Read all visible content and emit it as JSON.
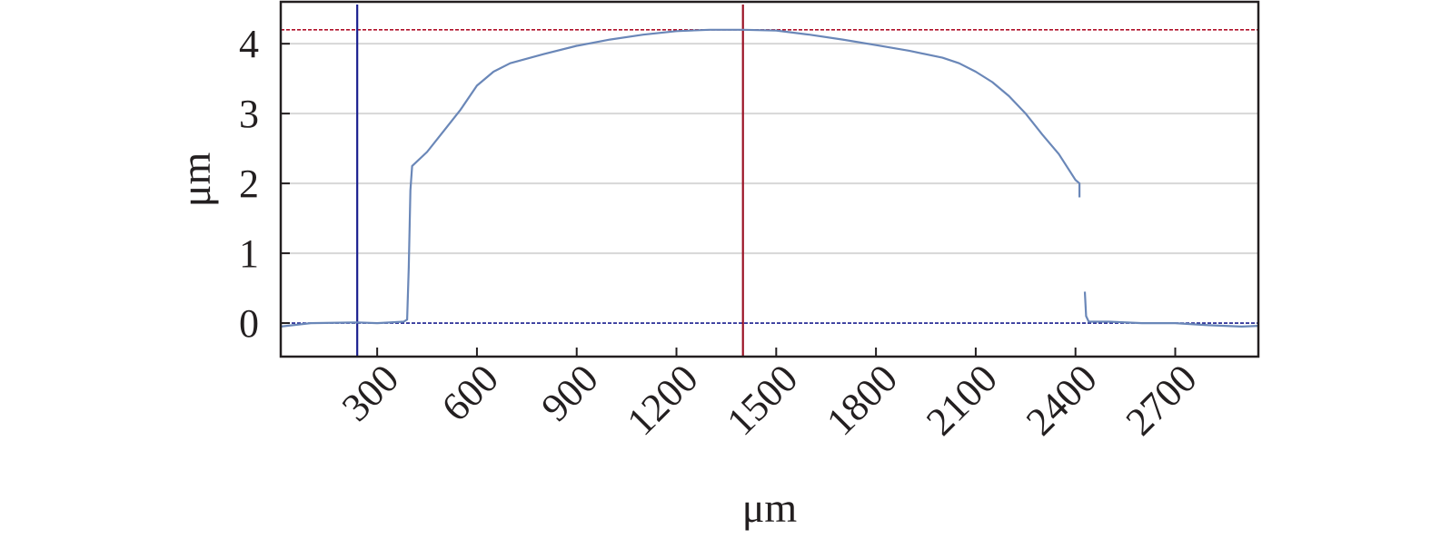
{
  "chart_data": {
    "type": "line",
    "title": "",
    "xlabel": "μm",
    "ylabel": "μm",
    "xlim": [
      10,
      2950
    ],
    "ylim": [
      -0.48,
      4.6
    ],
    "xticks": [
      300,
      600,
      900,
      1200,
      1500,
      1800,
      2100,
      2400,
      2700
    ],
    "xtick_labels": [
      "300",
      "600",
      "900",
      "1200",
      "1500",
      "1800",
      "2100",
      "2400",
      "2700"
    ],
    "yticks": [
      0,
      1,
      2,
      3,
      4
    ],
    "ytick_labels": [
      "0",
      "1",
      "2",
      "3",
      "4"
    ],
    "grid": true,
    "legend": "none",
    "series": [
      {
        "color": "#6a87b8",
        "segments": [
          [
            [
              10,
              -0.05
            ],
            [
              100,
              0.0
            ],
            [
              240,
              0.01
            ],
            [
              300,
              0.0
            ],
            [
              380,
              0.02
            ],
            [
              390,
              0.05
            ],
            [
              395,
              0.8
            ],
            [
              400,
              1.9
            ],
            [
              405,
              2.25
            ],
            [
              450,
              2.45
            ],
            [
              500,
              2.75
            ],
            [
              550,
              3.05
            ],
            [
              600,
              3.4
            ],
            [
              650,
              3.6
            ],
            [
              700,
              3.72
            ],
            [
              800,
              3.85
            ],
            [
              900,
              3.97
            ],
            [
              1000,
              4.06
            ],
            [
              1100,
              4.13
            ],
            [
              1200,
              4.18
            ],
            [
              1300,
              4.2
            ],
            [
              1400,
              4.2
            ],
            [
              1500,
              4.19
            ],
            [
              1600,
              4.13
            ],
            [
              1700,
              4.06
            ],
            [
              1800,
              3.98
            ],
            [
              1900,
              3.9
            ],
            [
              2000,
              3.8
            ],
            [
              2050,
              3.72
            ],
            [
              2100,
              3.6
            ],
            [
              2150,
              3.45
            ],
            [
              2200,
              3.25
            ],
            [
              2250,
              3.0
            ],
            [
              2300,
              2.7
            ],
            [
              2350,
              2.42
            ],
            [
              2400,
              2.05
            ],
            [
              2412,
              2.0
            ],
            [
              2412,
              1.8
            ]
          ],
          [
            [
              2428,
              0.45
            ],
            [
              2432,
              0.1
            ],
            [
              2440,
              0.02
            ],
            [
              2500,
              0.02
            ],
            [
              2600,
              0.0
            ],
            [
              2700,
              0.0
            ],
            [
              2800,
              -0.03
            ],
            [
              2900,
              -0.05
            ],
            [
              2950,
              -0.04
            ]
          ]
        ]
      }
    ],
    "reference_lines": [
      {
        "orientation": "horizontal",
        "value": 4.2,
        "color": "#b0122a",
        "style": "dashed"
      },
      {
        "orientation": "horizontal",
        "value": 0,
        "color": "#1a1f8f",
        "style": "dashed"
      },
      {
        "orientation": "vertical",
        "value": 240,
        "color": "#1a1f8f",
        "style": "solid"
      },
      {
        "orientation": "vertical",
        "value": 1400,
        "color": "#9b1224",
        "style": "solid"
      }
    ],
    "colors": {
      "frame": "#231f20",
      "grid": "#d7d7d7",
      "text": "#231f20"
    }
  }
}
